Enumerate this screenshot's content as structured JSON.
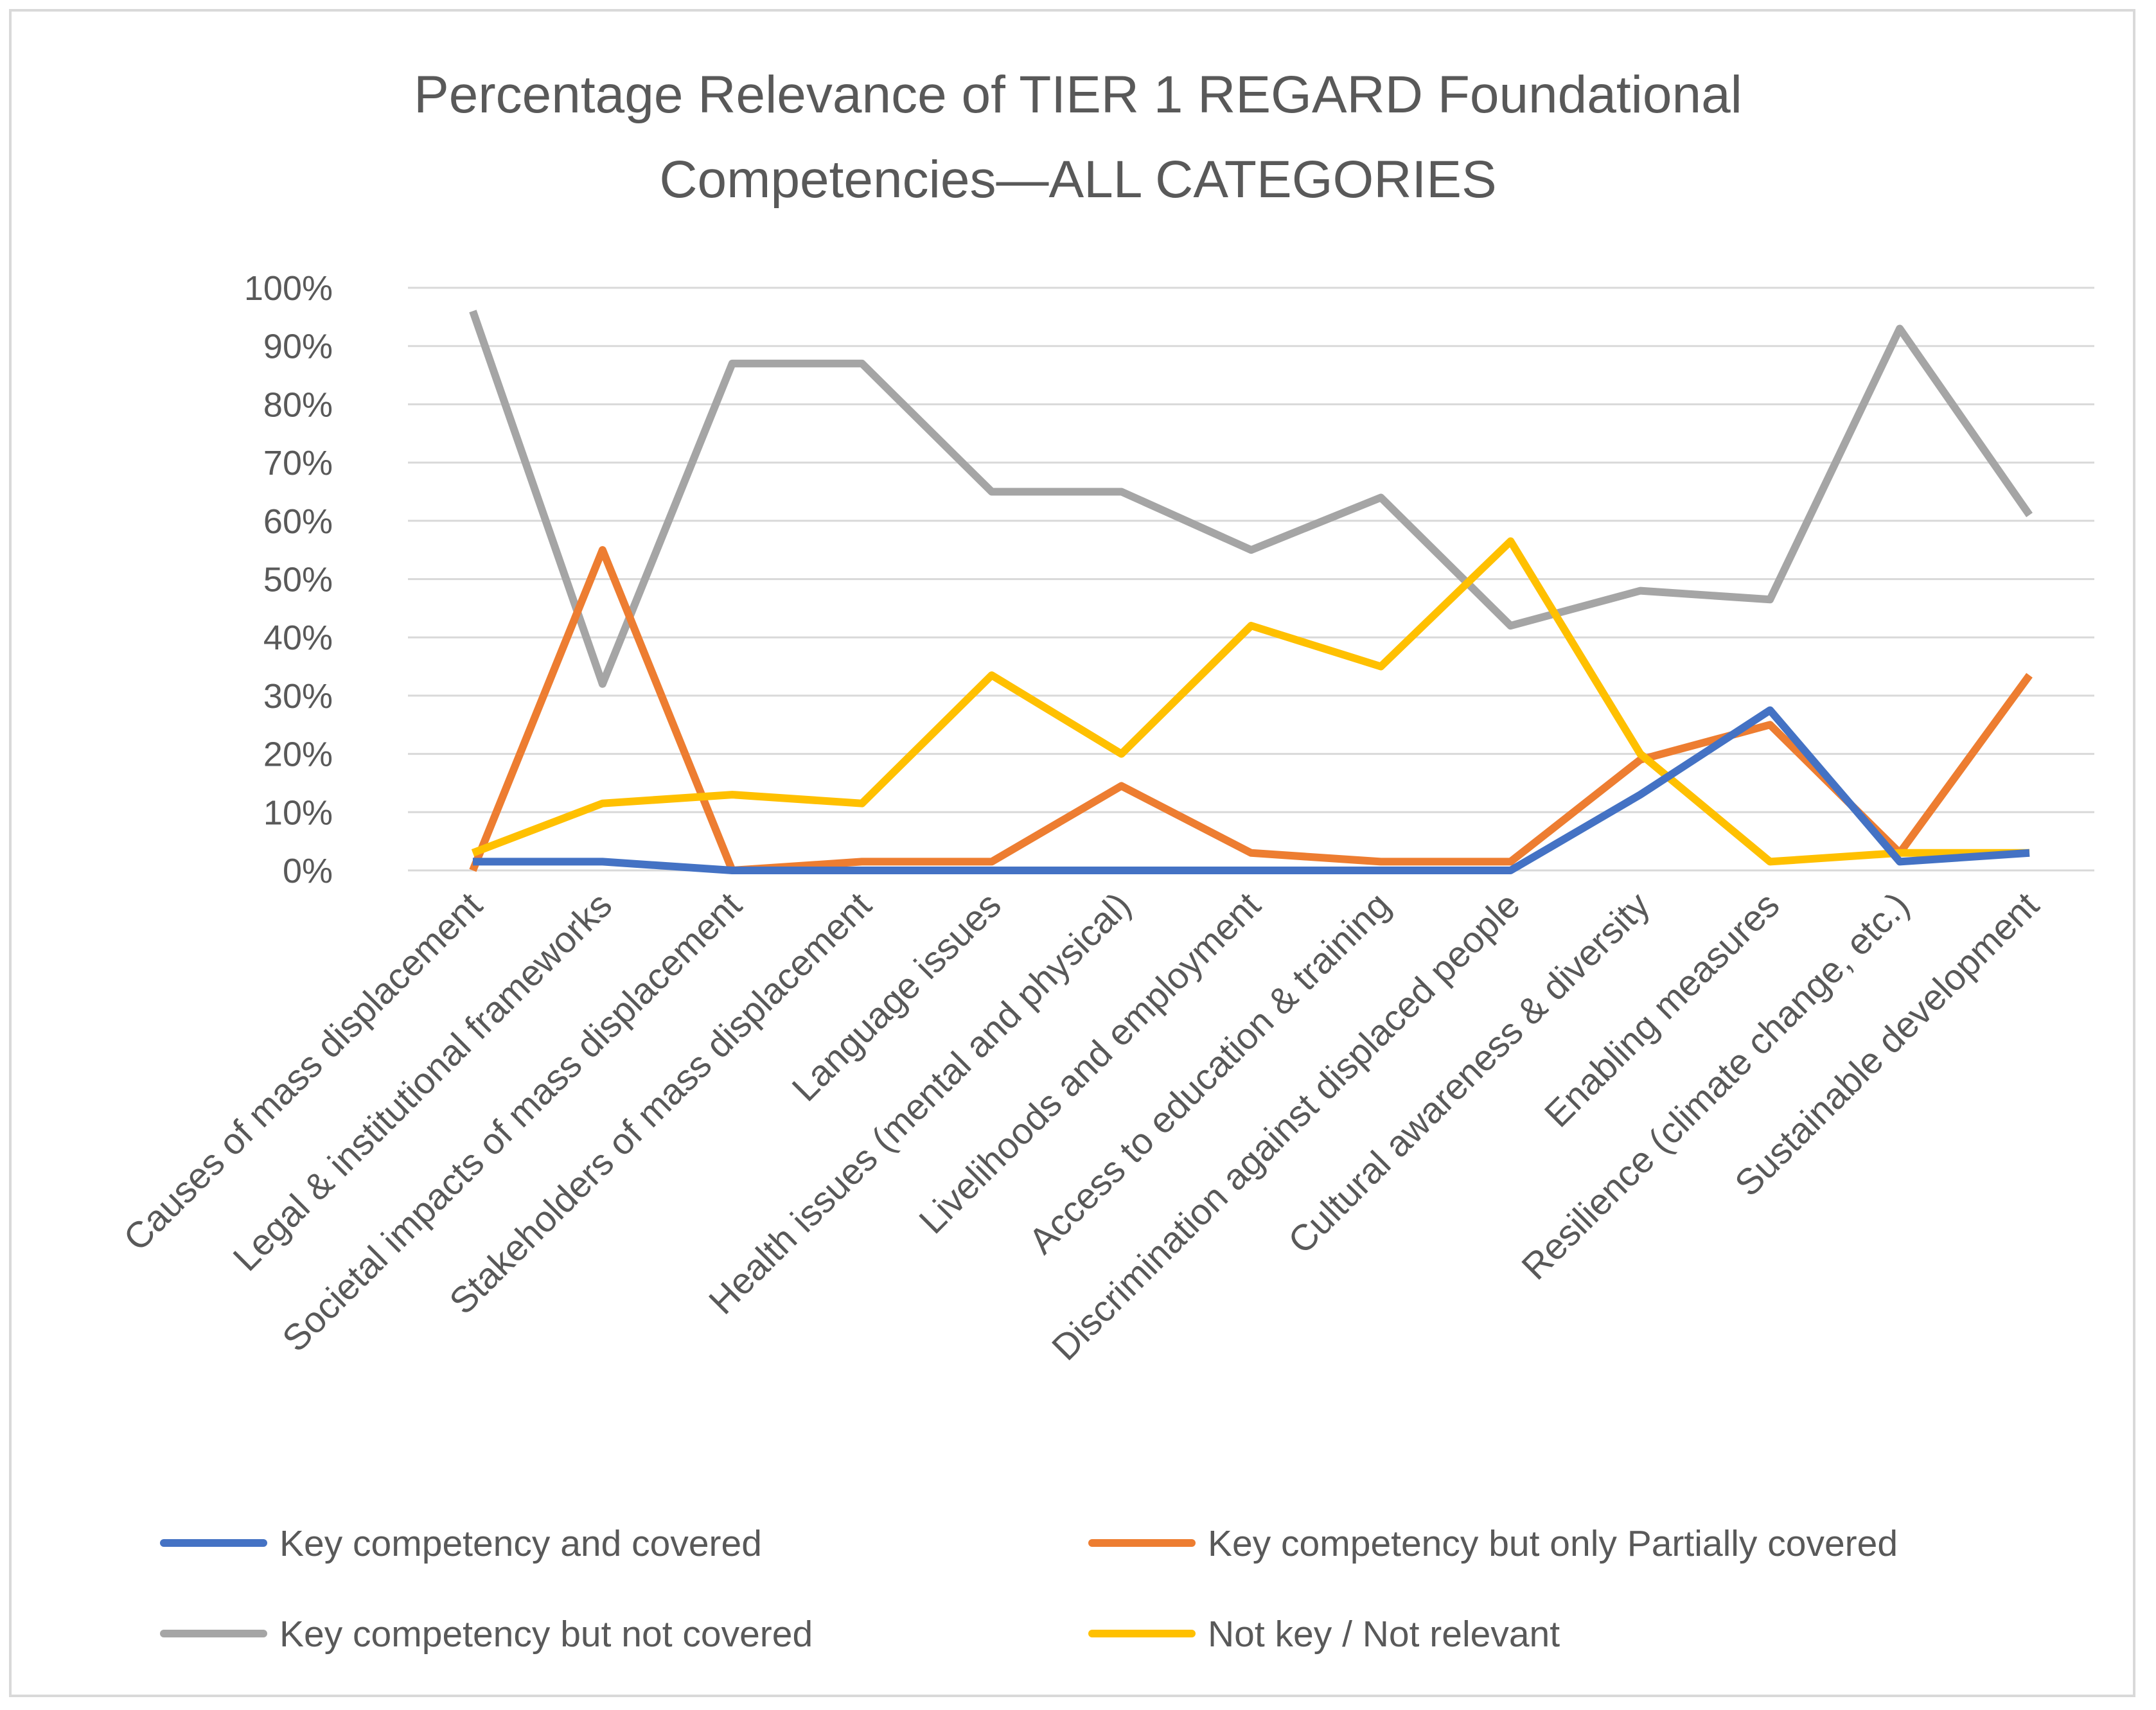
{
  "chart_data": {
    "type": "line",
    "title": "Percentage Relevance of TIER 1 REGARD Foundational Competencies—ALL CATEGORIES",
    "title_lines": [
      "Percentage Relevance of TIER 1 REGARD Foundational",
      "Competencies—ALL CATEGORIES"
    ],
    "xlabel": "",
    "ylabel": "",
    "ylim": [
      0,
      100
    ],
    "y_ticks": [
      0,
      10,
      20,
      30,
      40,
      50,
      60,
      70,
      80,
      90,
      100
    ],
    "y_tick_labels": [
      "0%",
      "10%",
      "20%",
      "30%",
      "40%",
      "50%",
      "60%",
      "70%",
      "80%",
      "90%",
      "100%"
    ],
    "grid": true,
    "legend_position": "bottom",
    "categories": [
      "Causes of mass displacement",
      "Legal & institutional frameworks",
      "Societal impacts of mass displacement",
      "Stakeholders of mass displacement",
      "Language issues",
      "Health issues (mental and physical)",
      "Livelihoods and employment",
      "Access to education & training",
      "Discrimination against displaced people",
      "Cultural awareness & diversity",
      "Enabling measures",
      "Resilience (climate change, etc.)",
      "Sustainable development"
    ],
    "series": [
      {
        "name": "Key competency and covered",
        "color": "#4472c4",
        "values": [
          1.5,
          1.5,
          0,
          0,
          0,
          0,
          0,
          0,
          0,
          13,
          27.5,
          1.5,
          3
        ]
      },
      {
        "name": "Key competency but only Partially covered",
        "color": "#ed7d31",
        "values": [
          0,
          55,
          0,
          1.5,
          1.5,
          14.5,
          3,
          1.5,
          1.5,
          19,
          25,
          3,
          33.5
        ]
      },
      {
        "name": "Key competency but not covered",
        "color": "#a5a5a5",
        "values": [
          96,
          32,
          87,
          87,
          65,
          65,
          55,
          64,
          42,
          48,
          46.5,
          93,
          61
        ]
      },
      {
        "name": "Not key / Not relevant",
        "color": "#ffc000",
        "values": [
          3,
          11.5,
          13,
          11.5,
          33.5,
          20,
          42,
          35,
          56.5,
          20,
          1.5,
          3,
          3
        ]
      }
    ]
  }
}
